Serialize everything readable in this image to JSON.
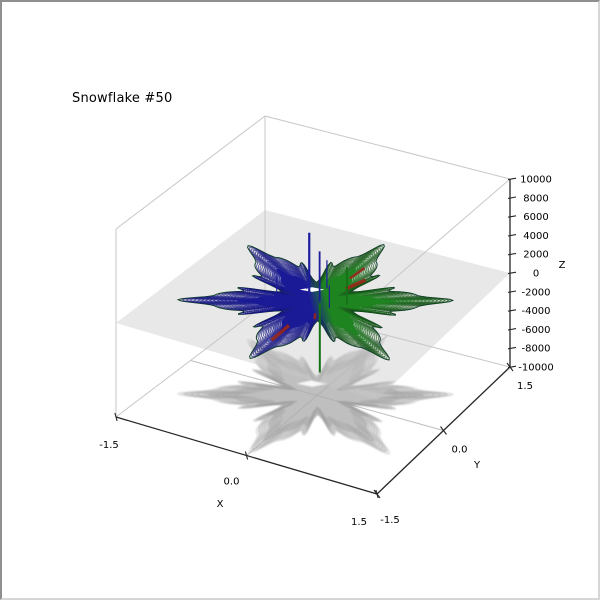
{
  "window": {
    "bg": "#ffffff"
  },
  "title": "Snowflake #50",
  "chart_data": {
    "type": "line",
    "projection": "3d",
    "title": "Snowflake #50",
    "axes": {
      "x": {
        "label": "X",
        "range": [
          -1.5,
          1.5
        ],
        "ticks": [
          {
            "v": -1.5,
            "label": "-1.5"
          },
          {
            "v": 0,
            "label": "0.0"
          },
          {
            "v": 1.5,
            "label": "1.5"
          }
        ]
      },
      "y": {
        "label": "Y",
        "range": [
          -1.5,
          1.5
        ],
        "ticks": [
          {
            "v": -1.5,
            "label": "-1.5"
          },
          {
            "v": 0,
            "label": "0.0"
          },
          {
            "v": 1.5,
            "label": "1.5"
          }
        ]
      },
      "z": {
        "label": "Z",
        "range": [
          -10000,
          10000
        ],
        "ticks": [
          {
            "v": 10000,
            "label": "10000"
          },
          {
            "v": 8000,
            "label": "8000"
          },
          {
            "v": 6000,
            "label": "6000"
          },
          {
            "v": 4000,
            "label": "4000"
          },
          {
            "v": 2000,
            "label": "2000"
          },
          {
            "v": 0,
            "label": "0"
          },
          {
            "v": -2000,
            "label": "-2000"
          },
          {
            "v": -4000,
            "label": "-4000"
          },
          {
            "v": -6000,
            "label": "-6000"
          },
          {
            "v": -8000,
            "label": "-8000"
          },
          {
            "v": -10000,
            "label": "-10000"
          }
        ]
      }
    },
    "box": {
      "edge_color": "#c7c7c7",
      "spine_color": "#262626",
      "tick_color": "#262626",
      "label_color": "#000000"
    },
    "floor_axis_lines": {
      "color": "#bdbdbd",
      "x_values": [
        0
      ],
      "y_values": [
        0
      ]
    },
    "base_plane": {
      "z": 0,
      "color": "#c9c9c9",
      "opacity": 0.42
    },
    "snowflake": {
      "center": [
        0,
        0
      ],
      "z": 0,
      "arms": 6,
      "arm_angle_offset_deg": 30,
      "radius": 1.38,
      "profile": {
        "base": 0.3,
        "main_amp": 0.52,
        "main_pow": 2,
        "sub_amp": 0.18,
        "sub_pow": 10,
        "jag_amp": 0.03
      },
      "rings": 16,
      "fill_scales": [
        0.86,
        0.72,
        0.58
      ],
      "colors": {
        "left": "#1a1a96",
        "right": "#1e8420",
        "ring_left": "#15157d",
        "ring_right": "#145217",
        "outline": "#0d3d26",
        "accent": "#97261a",
        "gap": "#ffffff"
      },
      "gap_center": [
        -0.17,
        0.2
      ],
      "red_accents": [
        {
          "angle_deg": 72,
          "r0": 0.5,
          "r1": 0.85,
          "w": 3.5
        },
        {
          "angle_deg": 85,
          "r0": 0.55,
          "r1": 0.8,
          "w": 2.5
        },
        {
          "angle_deg": 270,
          "r0": 0.42,
          "r1": 0.68,
          "w": 3.5
        },
        {
          "angle_deg": 295,
          "r0": 0.5,
          "r1": 0.75,
          "w": 2.5
        }
      ],
      "spikes": [
        {
          "x": -0.12,
          "y": 0.05,
          "z": 6800,
          "color": "#1c1c9c",
          "w": 2.2
        },
        {
          "x": 0.02,
          "y": 0.02,
          "z": 5300,
          "color": "#1c1c9c",
          "w": 1.8
        },
        {
          "x": -0.05,
          "y": 0.3,
          "z": 3000,
          "color": "#1c1c9c",
          "w": 1.2
        },
        {
          "x": -0.45,
          "y": -0.05,
          "z": 1800,
          "color": "#1c1c9c",
          "w": 1.0
        },
        {
          "x": 0.18,
          "y": -0.06,
          "z": 2400,
          "color": "#1c1c9c",
          "w": 1.2
        },
        {
          "x": -0.22,
          "y": 0.18,
          "z": 2000,
          "color": "#1c1c9c",
          "w": 1.0
        },
        {
          "x": 0.3,
          "y": 0.1,
          "z": 4000,
          "color": "#167016",
          "w": 1.8
        },
        {
          "x": 0.05,
          "y": -0.03,
          "z": -7300,
          "color": "#167016",
          "w": 2.0
        }
      ]
    },
    "shadow": {
      "z": -10000,
      "fill": "#a8a8a8",
      "fill_outer": "#bcbcbc",
      "ring_color": "#9a9a9a",
      "gap": "#ffffff"
    }
  }
}
